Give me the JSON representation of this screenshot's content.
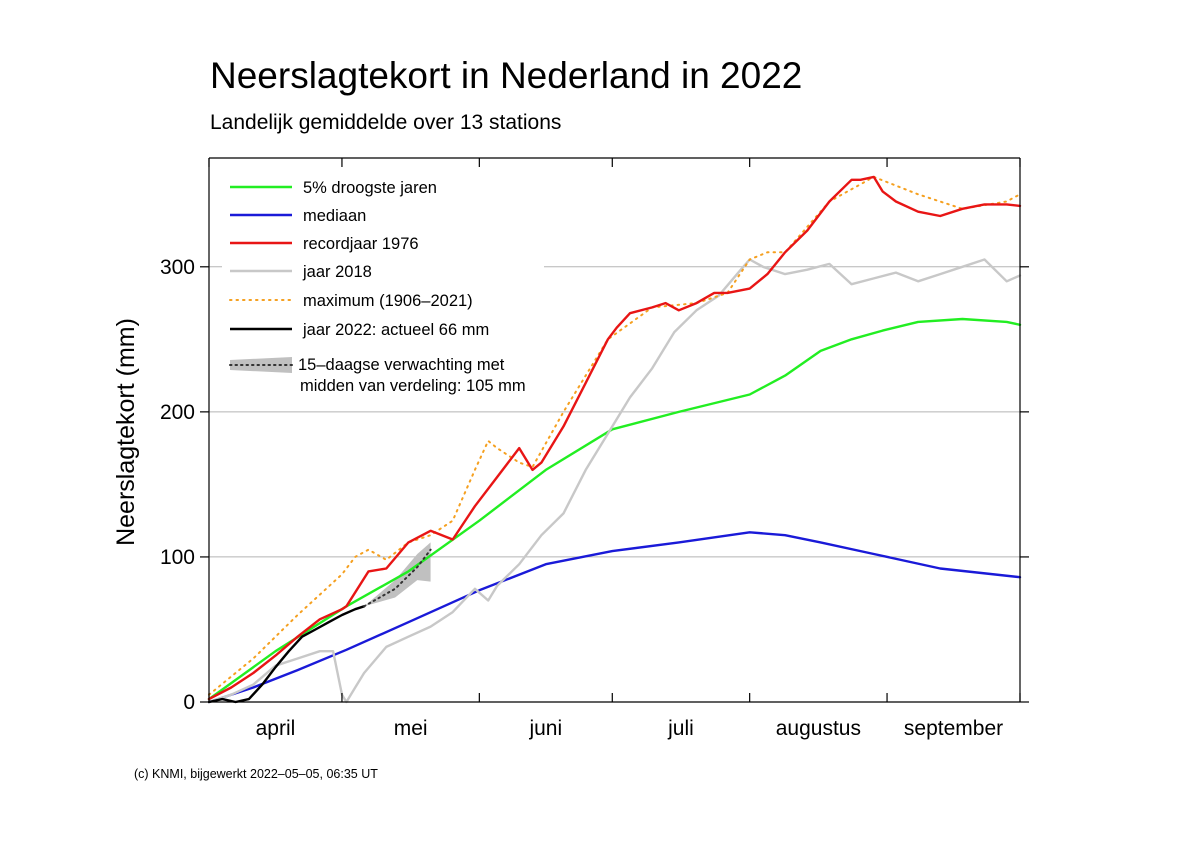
{
  "chart_data": {
    "type": "line",
    "title": "Neerslagtekort in Nederland in 2022",
    "subtitle": "Landelijk gemiddelde over 13 stations",
    "ylabel": "Neerslagtekort (mm)",
    "xlabel": "",
    "x_unit": "days since 1 April",
    "xlim": [
      0,
      183
    ],
    "ylim": [
      0,
      375
    ],
    "yticks": [
      0,
      100,
      200,
      300
    ],
    "ytick_labels": [
      "0",
      "100",
      "200",
      "300"
    ],
    "grid": "horizontal at 100, 200, 300",
    "month_boundaries": [
      0,
      30,
      61,
      91,
      122,
      153,
      183
    ],
    "months": [
      {
        "label": "april",
        "x": 15
      },
      {
        "label": "mei",
        "x": 45.5
      },
      {
        "label": "juni",
        "x": 76
      },
      {
        "label": "juli",
        "x": 106.5
      },
      {
        "label": "augustus",
        "x": 137.5
      },
      {
        "label": "september",
        "x": 168
      }
    ],
    "legend_position": "top-left",
    "series": [
      {
        "name": "5% droogste jaren",
        "color": "#22ee22",
        "style": "solid",
        "x": [
          0,
          15,
          31,
          45,
          61,
          76,
          91,
          106,
          122,
          130,
          138,
          145,
          152,
          160,
          170,
          180,
          183
        ],
        "y": [
          2,
          35,
          66,
          90,
          125,
          160,
          188,
          200,
          212,
          225,
          242,
          250,
          256,
          262,
          264,
          262,
          260
        ]
      },
      {
        "name": "mediaan",
        "color": "#1a1ad8",
        "style": "solid",
        "x": [
          0,
          10,
          20,
          31,
          45,
          61,
          76,
          91,
          106,
          122,
          130,
          138,
          150,
          165,
          183
        ],
        "y": [
          0,
          10,
          22,
          36,
          55,
          77,
          95,
          104,
          110,
          117,
          115,
          110,
          102,
          92,
          86
        ]
      },
      {
        "name": "recordjaar 1976",
        "color": "#e81515",
        "style": "solid",
        "x": [
          0,
          5,
          10,
          15,
          20,
          25,
          30,
          31,
          36,
          40,
          45,
          50,
          55,
          60,
          65,
          70,
          73,
          75,
          80,
          85,
          90,
          92,
          95,
          100,
          103,
          106,
          110,
          114,
          117,
          122,
          126,
          130,
          135,
          140,
          145,
          147,
          150,
          152,
          155,
          160,
          165,
          170,
          175,
          180,
          183
        ],
        "y": [
          2,
          10,
          20,
          32,
          45,
          57,
          64,
          66,
          90,
          92,
          110,
          118,
          112,
          135,
          155,
          175,
          160,
          165,
          190,
          220,
          250,
          258,
          268,
          272,
          275,
          270,
          275,
          282,
          282,
          285,
          295,
          310,
          325,
          345,
          360,
          360,
          362,
          352,
          345,
          338,
          335,
          340,
          343,
          343,
          342
        ]
      },
      {
        "name": "jaar 2018",
        "color": "#c8c8c8",
        "style": "solid",
        "x": [
          0,
          5,
          10,
          15,
          20,
          25,
          28,
          30,
          31,
          33,
          35,
          40,
          45,
          50,
          55,
          60,
          63,
          65,
          70,
          75,
          80,
          85,
          90,
          95,
          100,
          105,
          110,
          115,
          120,
          122,
          125,
          130,
          135,
          140,
          145,
          150,
          155,
          160,
          165,
          170,
          175,
          180,
          183
        ],
        "y": [
          0,
          5,
          12,
          25,
          30,
          35,
          35,
          5,
          0,
          10,
          20,
          38,
          45,
          52,
          62,
          78,
          70,
          80,
          95,
          115,
          130,
          160,
          185,
          210,
          230,
          255,
          270,
          280,
          298,
          305,
          300,
          295,
          298,
          302,
          288,
          292,
          296,
          290,
          295,
          300,
          305,
          290,
          294
        ]
      },
      {
        "name": "maximum (1906–2021)",
        "color": "#f5a020",
        "style": "dotted",
        "x": [
          0,
          10,
          20,
          30,
          33,
          36,
          40,
          45,
          50,
          55,
          60,
          63,
          65,
          70,
          73,
          80,
          90,
          100,
          110,
          117,
          122,
          126,
          130,
          140,
          150,
          160,
          170,
          180,
          183
        ],
        "y": [
          5,
          30,
          60,
          88,
          100,
          105,
          98,
          110,
          115,
          125,
          160,
          180,
          175,
          165,
          162,
          200,
          250,
          272,
          275,
          282,
          305,
          310,
          310,
          345,
          362,
          350,
          340,
          345,
          350
        ]
      },
      {
        "name": "jaar 2022: actueel 66 mm",
        "color": "#000000",
        "style": "solid",
        "x": [
          0,
          3,
          6,
          9,
          12,
          15,
          18,
          21,
          24,
          27,
          30,
          33,
          35
        ],
        "y": [
          0,
          2,
          0,
          2,
          12,
          24,
          35,
          45,
          50,
          55,
          60,
          64,
          66
        ]
      }
    ],
    "forecast": {
      "name": "15–daagse verwachting met",
      "name_line2": "midden van verdeling: 105 mm",
      "color": "#c0c0c0",
      "line_color": "#333333",
      "x": [
        35,
        42,
        47,
        50
      ],
      "median": [
        66,
        78,
        93,
        105
      ],
      "upper": [
        66,
        84,
        102,
        110
      ],
      "lower": [
        66,
        72,
        84,
        83
      ]
    }
  },
  "credit": "(c) KNMI, bijgewerkt 2022–05–05, 06:35 UT"
}
